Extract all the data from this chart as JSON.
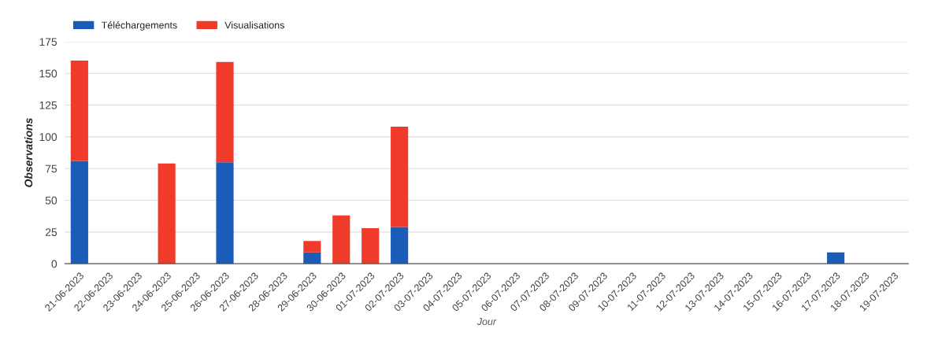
{
  "chart_data": {
    "type": "bar",
    "stacked": true,
    "xlabel": "Jour",
    "ylabel": "Observations",
    "categories": [
      "21-06-2023",
      "22-06-2023",
      "23-06-2023",
      "24-06-2023",
      "25-06-2023",
      "26-06-2023",
      "27-06-2023",
      "28-06-2023",
      "29-06-2023",
      "30-06-2023",
      "01-07-2023",
      "02-07-2023",
      "03-07-2023",
      "04-07-2023",
      "05-07-2023",
      "06-07-2023",
      "07-07-2023",
      "08-07-2023",
      "09-07-2023",
      "10-07-2023",
      "11-07-2023",
      "12-07-2023",
      "13-07-2023",
      "14-07-2023",
      "15-07-2023",
      "16-07-2023",
      "17-07-2023",
      "18-07-2023",
      "19-07-2023"
    ],
    "series": [
      {
        "name": "Téléchargements",
        "color": "#1a5cb8",
        "values": [
          81,
          null,
          null,
          null,
          null,
          80,
          null,
          null,
          9,
          null,
          null,
          29,
          null,
          null,
          null,
          null,
          null,
          null,
          null,
          null,
          null,
          null,
          null,
          null,
          null,
          null,
          9,
          null,
          null
        ]
      },
      {
        "name": "Visualisations",
        "color": "#f03a2a",
        "values": [
          79,
          null,
          null,
          79,
          null,
          79,
          null,
          null,
          9,
          38,
          28,
          79,
          null,
          null,
          null,
          null,
          null,
          null,
          null,
          null,
          null,
          null,
          null,
          null,
          null,
          null,
          null,
          null,
          null
        ]
      }
    ],
    "ylim": [
      0,
      175
    ],
    "yticks": [
      0,
      25,
      50,
      75,
      100,
      125,
      150,
      175
    ],
    "grid": "y",
    "legend": "top left"
  }
}
